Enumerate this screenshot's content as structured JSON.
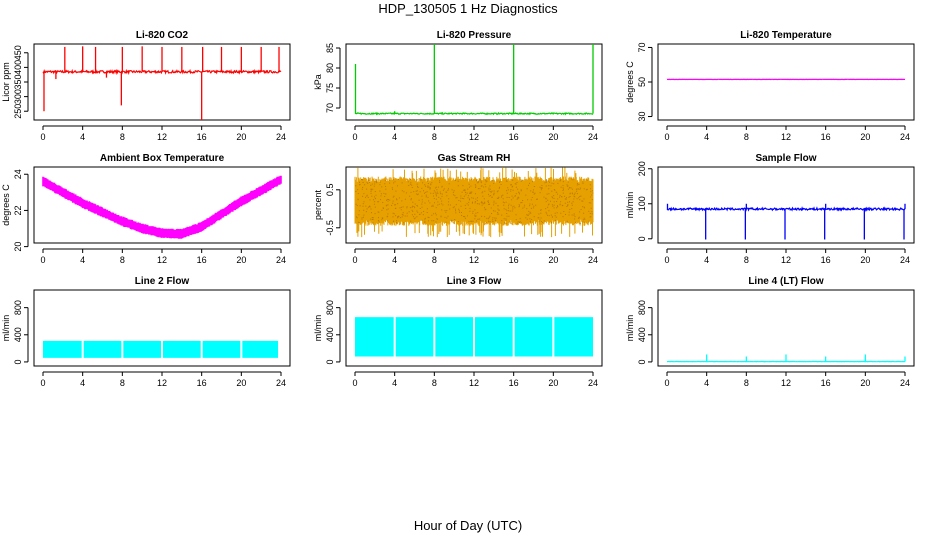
{
  "title": "HDP_130505  1 Hz Diagnostics",
  "x_caption": "Hour of Day (UTC)",
  "chart_data": [
    {
      "type": "line",
      "title": "Li-820 CO2",
      "ylabel": "Licor ppm",
      "xlim": [
        0,
        24
      ],
      "ylim": [
        220,
        480
      ],
      "x_ticks": [
        "0",
        "4",
        "8",
        "12",
        "16",
        "20",
        "24"
      ],
      "y_ticks": [
        "250",
        "300",
        "350",
        "400",
        "450"
      ],
      "color": "#ff0000",
      "series": [
        {
          "baseline": 385,
          "noise": 4,
          "spikes": [
            [
              1.3,
              360
            ],
            [
              2.2,
              470
            ],
            [
              4.0,
              472
            ],
            [
              5.3,
              470
            ],
            [
              6.4,
              365
            ],
            [
              7.9,
              270
            ],
            [
              8.0,
              470
            ],
            [
              10.0,
              472
            ],
            [
              12.0,
              470
            ],
            [
              14.0,
              470
            ],
            [
              16.0,
              220
            ],
            [
              16.1,
              470
            ],
            [
              18.0,
              470
            ],
            [
              20.0,
              470
            ],
            [
              22.0,
              470
            ],
            [
              23.8,
              470
            ],
            [
              0.1,
              250
            ]
          ]
        }
      ]
    },
    {
      "type": "line",
      "title": "Li-820 Pressure",
      "ylabel": "kPa",
      "xlim": [
        0,
        24
      ],
      "ylim": [
        67,
        86
      ],
      "x_ticks": [
        "0",
        "4",
        "8",
        "12",
        "16",
        "20",
        "24"
      ],
      "y_ticks": [
        "70",
        "75",
        "80",
        "85"
      ],
      "color": "#00cc00",
      "series": [
        {
          "baseline": 68.6,
          "noise": 0.15,
          "spikes": [
            [
              0.05,
              81
            ],
            [
              4.0,
              69.2
            ],
            [
              8.0,
              86
            ],
            [
              16.0,
              86
            ],
            [
              24.0,
              86
            ]
          ]
        }
      ]
    },
    {
      "type": "line",
      "title": "Li-820 Temperature",
      "ylabel": "degrees C",
      "xlim": [
        0,
        24
      ],
      "ylim": [
        28,
        72
      ],
      "x_ticks": [
        "0",
        "4",
        "8",
        "12",
        "16",
        "20",
        "24"
      ],
      "y_ticks": [
        "30",
        "50",
        "70"
      ],
      "color": "#ff00ff",
      "series": [
        {
          "baseline": 51.5,
          "noise": 0.05,
          "spikes": []
        }
      ]
    },
    {
      "type": "line",
      "title": "Ambient Box Temperature",
      "ylabel": "degrees C",
      "xlim": [
        0,
        24
      ],
      "ylim": [
        20.2,
        24.4
      ],
      "x_ticks": [
        "0",
        "4",
        "8",
        "12",
        "16",
        "20",
        "24"
      ],
      "y_ticks": [
        "20",
        "22",
        "24"
      ],
      "color": "#ff00ff",
      "series": [
        {
          "x": [
            0,
            2,
            4,
            6,
            8,
            10,
            12,
            14,
            16,
            18,
            20,
            22,
            24
          ],
          "y": [
            23.6,
            23.0,
            22.4,
            21.9,
            21.4,
            21.0,
            20.75,
            20.7,
            21.1,
            21.8,
            22.5,
            23.1,
            23.7
          ],
          "band": 0.55
        }
      ]
    },
    {
      "type": "line",
      "title": "Gas Stream RH",
      "ylabel": "percent",
      "xlim": [
        0,
        24
      ],
      "ylim": [
        -0.9,
        1.1
      ],
      "x_ticks": [
        "0",
        "4",
        "8",
        "12",
        "16",
        "20",
        "24"
      ],
      "y_ticks": [
        "-0.5",
        "0.5"
      ],
      "color": "#e6a000",
      "series": [
        {
          "center": 0.2,
          "band": 0.65,
          "outlier": 0.9
        }
      ]
    },
    {
      "type": "line",
      "title": "Sample Flow",
      "ylabel": "ml/min",
      "xlim": [
        0,
        24
      ],
      "ylim": [
        -12,
        205
      ],
      "x_ticks": [
        "0",
        "4",
        "8",
        "12",
        "16",
        "20",
        "24"
      ],
      "y_ticks": [
        "0",
        "100",
        "200"
      ],
      "color": "#0000ff",
      "series": [
        {
          "baseline": 85,
          "noise": 3,
          "spikes": [
            [
              0.05,
              100
            ],
            [
              3.9,
              -2
            ],
            [
              7.9,
              -2
            ],
            [
              8.0,
              100
            ],
            [
              11.9,
              -2
            ],
            [
              15.9,
              -2
            ],
            [
              16.0,
              100
            ],
            [
              19.9,
              -2
            ],
            [
              23.9,
              -2
            ],
            [
              24.0,
              100
            ]
          ]
        }
      ]
    },
    {
      "type": "area",
      "title": "Line 2 Flow",
      "ylabel": "ml/min",
      "xlim": [
        0,
        24
      ],
      "ylim": [
        -60,
        1060
      ],
      "x_ticks": [
        "0",
        "4",
        "8",
        "12",
        "16",
        "20",
        "24"
      ],
      "y_ticks": [
        "0",
        "400",
        "800"
      ],
      "color": "#00ffff",
      "series": [
        {
          "low": 60,
          "high": 310,
          "gaps": [
            4,
            8,
            12,
            16,
            20
          ],
          "end": 23.8
        }
      ]
    },
    {
      "type": "area",
      "title": "Line 3 Flow",
      "ylabel": "ml/min",
      "xlim": [
        0,
        24
      ],
      "ylim": [
        -60,
        1060
      ],
      "x_ticks": [
        "0",
        "4",
        "8",
        "12",
        "16",
        "20",
        "24"
      ],
      "y_ticks": [
        "0",
        "400",
        "800"
      ],
      "color": "#00ffff",
      "series": [
        {
          "low": 80,
          "high": 660,
          "gaps": [
            4,
            8,
            12,
            16,
            20
          ],
          "end": 24.1
        }
      ]
    },
    {
      "type": "line",
      "title": "Line 4 (LT) Flow",
      "ylabel": "ml/min",
      "xlim": [
        0,
        24
      ],
      "ylim": [
        -60,
        1060
      ],
      "x_ticks": [
        "0",
        "4",
        "8",
        "12",
        "16",
        "20",
        "24"
      ],
      "y_ticks": [
        "0",
        "400",
        "800"
      ],
      "color": "#00ffff",
      "series": [
        {
          "baseline": 5,
          "noise": 2,
          "spikes": [
            [
              4.0,
              110
            ],
            [
              8.0,
              80
            ],
            [
              12.0,
              110
            ],
            [
              16.0,
              80
            ],
            [
              20.0,
              110
            ],
            [
              24.0,
              80
            ]
          ]
        }
      ]
    }
  ]
}
